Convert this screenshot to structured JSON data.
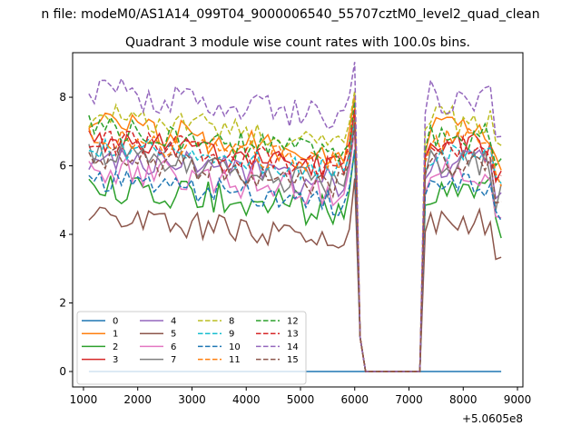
{
  "chart_data": {
    "type": "line",
    "suptitle": "n file: modeM0/AS1A14_099T04_9000006540_55707cztM0_level2_quad_clean",
    "title": "Quadrant 3 module wise count rates with 100.0s bins.",
    "xlabel": "",
    "ylabel": "",
    "x_offset_label": "+5.0605e8",
    "xlim": [
      800,
      9100
    ],
    "ylim": [
      -0.45,
      9.3
    ],
    "xticks": [
      1000,
      2000,
      3000,
      4000,
      5000,
      6000,
      7000,
      8000,
      9000
    ],
    "xtick_labels": [
      "1000",
      "2000",
      "3000",
      "4000",
      "5000",
      "6000",
      "7000",
      "8000",
      "9000"
    ],
    "yticks": [
      0,
      2,
      4,
      6,
      8
    ],
    "ytick_labels": [
      "0",
      "2",
      "4",
      "6",
      "8"
    ],
    "x_range": {
      "start": 1100,
      "step": 100,
      "end": 8700
    },
    "gap": {
      "from": 6100,
      "to": 7200
    },
    "legend_placement": "lower-left",
    "legend_columns": 4,
    "series": [
      {
        "name": "0",
        "color": "#1f77b4",
        "dash": "solid",
        "base": 0.0,
        "amp": 0.0,
        "seed": 0,
        "zero": true
      },
      {
        "name": "1",
        "color": "#ff7f0e",
        "dash": "solid",
        "base": 6.5,
        "amp": 0.45,
        "seed": 1
      },
      {
        "name": "2",
        "color": "#2ca02c",
        "dash": "solid",
        "base": 4.8,
        "amp": 0.5,
        "seed": 2
      },
      {
        "name": "3",
        "color": "#d62728",
        "dash": "solid",
        "base": 6.0,
        "amp": 0.5,
        "seed": 3
      },
      {
        "name": "4",
        "color": "#9467bd",
        "dash": "solid",
        "base": 5.6,
        "amp": 0.45,
        "seed": 4
      },
      {
        "name": "5",
        "color": "#8c564b",
        "dash": "solid",
        "base": 3.9,
        "amp": 0.4,
        "seed": 5
      },
      {
        "name": "6",
        "color": "#e377c2",
        "dash": "solid",
        "base": 5.3,
        "amp": 0.45,
        "seed": 6
      },
      {
        "name": "7",
        "color": "#7f7f7f",
        "dash": "solid",
        "base": 5.6,
        "amp": 0.45,
        "seed": 7
      },
      {
        "name": "8",
        "color": "#bcbd22",
        "dash": "dashed",
        "base": 6.8,
        "amp": 0.45,
        "seed": 8
      },
      {
        "name": "9",
        "color": "#17becf",
        "dash": "dashed",
        "base": 5.9,
        "amp": 0.4,
        "seed": 9
      },
      {
        "name": "10",
        "color": "#1f77b4",
        "dash": "dashed",
        "base": 5.0,
        "amp": 0.4,
        "seed": 10
      },
      {
        "name": "11",
        "color": "#ff7f0e",
        "dash": "dashed",
        "base": 6.2,
        "amp": 0.4,
        "seed": 11
      },
      {
        "name": "12",
        "color": "#2ca02c",
        "dash": "dashed",
        "base": 6.4,
        "amp": 0.4,
        "seed": 12
      },
      {
        "name": "13",
        "color": "#d62728",
        "dash": "dashed",
        "base": 6.1,
        "amp": 0.4,
        "seed": 13
      },
      {
        "name": "14",
        "color": "#9467bd",
        "dash": "dashed",
        "base": 7.5,
        "amp": 0.5,
        "seed": 14
      },
      {
        "name": "15",
        "color": "#8c564b",
        "dash": "dashed",
        "base": 5.6,
        "amp": 0.4,
        "seed": 15
      }
    ]
  }
}
